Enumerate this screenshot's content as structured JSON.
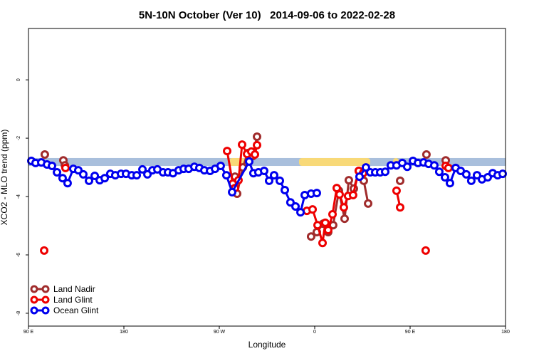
{
  "chart_data": {
    "type": "line",
    "title": "5N-10N October (Ver 10)   2014-09-06 to 2022-02-28",
    "x_label": "Longitude",
    "y_label": "XCO2 - MLO trend (ppm)",
    "xlim": [
      90,
      540
    ],
    "xticks": [
      {
        "value": 90,
        "label": "90 E"
      },
      180,
      {
        "value": 270,
        "label": "90 W"
      },
      {
        "value": 360,
        "label": "0"
      },
      {
        "value": 450,
        "label": "90 E"
      },
      {
        "value": 540,
        "label": "180"
      }
    ],
    "ylim": [
      -8.44,
      1.76
    ],
    "yticks": [
      0,
      -2,
      -4,
      -6,
      -8
    ],
    "legend": "bottom-left",
    "band": {
      "ylim": [
        -2.95,
        -2.68
      ],
      "color": "#a9bfdc",
      "highlight_color": "#f8d978",
      "highlights": [
        [
          279.4,
          294.8
        ],
        [
          345.2,
          412.4
        ],
        [
          433.9,
          439.2
        ]
      ]
    },
    "series": [
      {
        "name": "Land Nadir",
        "color": "#a02c2c",
        "x": [
          105.4,
          null,
          122.9,
          124.3,
          null,
          284.8,
          286.8,
          292.2,
          296.8,
          301.6,
          305.6,
          null,
          356.6,
          362,
          368,
          372.7,
          377.4,
          382.8,
          388.2,
          392.2,
          396.9,
          401.6,
          406.3,
          410.4,
          null,
          440.6,
          null,
          465.4,
          null,
          483.6
        ],
        "values": [
          -2.56,
          null,
          -2.76,
          -2.93,
          null,
          -3.32,
          -3.9,
          -3.0,
          -2.51,
          -2.61,
          -1.95,
          null,
          -5.37,
          -5.22,
          -4.93,
          -5.22,
          -4.98,
          -3.8,
          -4.76,
          -3.44,
          -3.73,
          -3.12,
          -3.46,
          -4.24,
          null,
          -3.46,
          null,
          -2.56,
          null,
          -2.76
        ]
      },
      {
        "name": "Land Glint",
        "color": "#ee0000",
        "x": [
          104.8,
          null,
          124.9,
          null,
          277.4,
          282.7,
          284.8,
          288.1,
          291.5,
          296.2,
          300.2,
          303.6,
          305.6,
          null,
          352.6,
          358,
          362.7,
          367.4,
          370,
          372.7,
          376.8,
          380.8,
          383.5,
          387.5,
          391.5,
          396.2,
          401.6,
          405.6,
          null,
          437.2,
          440.6,
          null,
          464.7,
          null,
          483.6,
          486.2
        ],
        "values": [
          -5.85,
          null,
          -3.02,
          null,
          -2.44,
          -3.56,
          -3.71,
          -3.44,
          -2.22,
          -2.54,
          -2.46,
          -2.56,
          -2.24,
          null,
          -4.49,
          -4.44,
          -4.98,
          -5.59,
          -4.9,
          -5.15,
          -4.61,
          -3.71,
          -3.93,
          -4.37,
          -3.98,
          -3.95,
          -3.12,
          -3.2,
          null,
          -3.8,
          -4.37,
          null,
          -5.85,
          null,
          -2.95,
          -3.02
        ]
      },
      {
        "name": "Ocean Glint",
        "color": "#0000ee",
        "x": [
          92.7,
          96.7,
          102.1,
          107.5,
          112.2,
          116.9,
          122.2,
          126.9,
          132.3,
          137,
          141.7,
          147.1,
          152.5,
          157.2,
          161.9,
          167.2,
          171.9,
          177.3,
          182,
          187.4,
          192.1,
          197.5,
          202.2,
          206.9,
          211.6,
          216.9,
          221.6,
          226.3,
          231.7,
          236.4,
          241.1,
          246.5,
          251.2,
          255.9,
          261.3,
          266,
          271.3,
          276.7,
          282.1,
          298.2,
          302.2,
          306.9,
          312.3,
          317,
          321.7,
          327.1,
          331.8,
          337.1,
          341.9,
          346.6,
          350.6,
          356.6,
          362,
          null,
          402.3,
          408.3,
          412.4,
          417.1,
          421.8,
          426.5,
          431.8,
          437.2,
          442.6,
          447.3,
          452.7,
          457.4,
          462.7,
          467.4,
          472.8,
          477.5,
          482.9,
          487.6,
          493,
          497.7,
          503,
          507.7,
          513.1,
          517.8,
          523.2,
          527.9,
          532.6,
          537.3
        ],
        "values": [
          -2.78,
          -2.85,
          -2.83,
          -2.9,
          -2.95,
          -3.17,
          -3.37,
          -3.54,
          -3.05,
          -3.1,
          -3.24,
          -3.46,
          -3.29,
          -3.44,
          -3.37,
          -3.22,
          -3.27,
          -3.22,
          -3.22,
          -3.27,
          -3.27,
          -3.07,
          -3.24,
          -3.1,
          -3.07,
          -3.17,
          -3.17,
          -3.2,
          -3.1,
          -3.05,
          -3.05,
          -2.98,
          -3.02,
          -3.1,
          -3.12,
          -3.05,
          -2.95,
          -3.27,
          -3.85,
          -2.8,
          -3.2,
          -3.17,
          -3.12,
          -3.46,
          -3.27,
          -3.46,
          -3.78,
          -4.2,
          -4.34,
          -4.54,
          -3.95,
          -3.9,
          -3.88,
          null,
          -3.32,
          -3.0,
          -3.17,
          -3.17,
          -3.17,
          -3.15,
          -2.93,
          -2.93,
          -2.85,
          -2.98,
          -2.78,
          -2.85,
          -2.83,
          -2.88,
          -2.93,
          -3.15,
          -3.34,
          -3.54,
          -3.02,
          -3.12,
          -3.24,
          -3.46,
          -3.27,
          -3.41,
          -3.34,
          -3.2,
          -3.27,
          -3.22
        ]
      }
    ]
  }
}
